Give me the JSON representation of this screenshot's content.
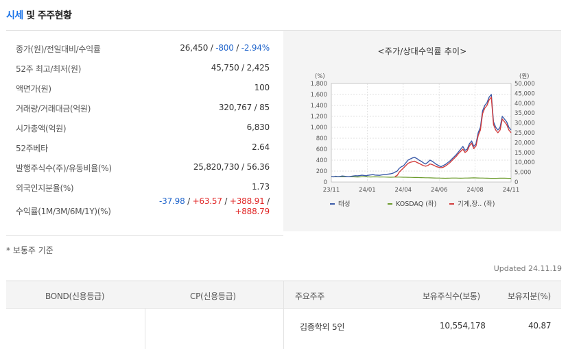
{
  "title": {
    "part1": "시세",
    "part2": "및 주주현황"
  },
  "info_rows": [
    {
      "label": "종가(원)/전일대비/수익률",
      "values": [
        {
          "text": "26,450",
          "tone": "normal"
        },
        {
          "text": " / ",
          "tone": "normal"
        },
        {
          "text": "-800",
          "tone": "neg"
        },
        {
          "text": " / ",
          "tone": "normal"
        },
        {
          "text": "-2.94%",
          "tone": "neg"
        }
      ]
    },
    {
      "label": "52주 최고/최저(원)",
      "value": "45,750 / 2,425"
    },
    {
      "label": "액면가(원)",
      "value": "100"
    },
    {
      "label": "거래량/거래대금(억원)",
      "value": "320,767 / 85"
    },
    {
      "label": "시가총액(억원)",
      "value": "6,830"
    },
    {
      "label": "52주베타",
      "value": "2.64"
    },
    {
      "label": "발행주식수(주)/유동비율(%)",
      "value": "25,820,730 / 56.36"
    },
    {
      "label": "외국인지분율(%)",
      "value": "1.73"
    },
    {
      "label": "수익률(1M/3M/6M/1Y)(%)",
      "line1": [
        {
          "text": "-37.98",
          "tone": "neg"
        },
        {
          "text": " / ",
          "tone": "normal"
        },
        {
          "text": "+63.57",
          "tone": "pos"
        },
        {
          "text": " / ",
          "tone": "normal"
        },
        {
          "text": "+388.91",
          "tone": "pos"
        },
        {
          "text": " /",
          "tone": "normal"
        }
      ],
      "line2": [
        {
          "text": "+888.79",
          "tone": "pos"
        }
      ]
    }
  ],
  "chart_data": {
    "type": "line",
    "title": "<주가/상대수익률 추이>",
    "left_axis_unit": "(%)",
    "right_axis_unit": "(원)",
    "left_ticks": [
      "1,800",
      "1,600",
      "1,400",
      "1,200",
      "1,000",
      "800",
      "600",
      "400",
      "200",
      "0"
    ],
    "right_ticks": [
      "50,000",
      "45,000",
      "40,000",
      "35,000",
      "30,000",
      "25,000",
      "20,000",
      "15,000",
      "10,000",
      "5,000",
      "0"
    ],
    "x_ticks": [
      "23/11",
      "24/01",
      "24/04",
      "24/06",
      "24/08",
      "24/11"
    ],
    "ylim_left": [
      0,
      1800
    ],
    "ylim_right": [
      0,
      50000
    ],
    "series": [
      {
        "name": "태성",
        "color": "#3a5aa8",
        "axis": "left",
        "values": [
          100,
          95,
          105,
          98,
          102,
          110,
          105,
          100,
          98,
          104,
          110,
          115,
          112,
          118,
          125,
          120,
          115,
          125,
          130,
          135,
          128,
          125,
          122,
          130,
          135,
          140,
          145,
          150,
          160,
          180,
          200,
          250,
          280,
          300,
          350,
          400,
          420,
          440,
          450,
          430,
          400,
          380,
          350,
          330,
          360,
          400,
          380,
          350,
          320,
          300,
          280,
          300,
          320,
          350,
          380,
          420,
          460,
          500,
          550,
          600,
          650,
          580,
          600,
          700,
          750,
          650,
          700,
          900,
          1000,
          1300,
          1400,
          1450,
          1550,
          1600,
          1100,
          1000,
          950,
          1000,
          1200,
          1150,
          1100,
          1000,
          950
        ]
      },
      {
        "name": "KOSDAQ (좌)",
        "color": "#6a9a2a",
        "axis": "left",
        "values": [
          100,
          98,
          97,
          96,
          97,
          95,
          96,
          98,
          97,
          96,
          95,
          94,
          93,
          94,
          95,
          96,
          95,
          94,
          93,
          94,
          95,
          94,
          93,
          92,
          91,
          90,
          89,
          88,
          89,
          90,
          91,
          90,
          89,
          88,
          87,
          86,
          85,
          84,
          83,
          82,
          81,
          80,
          79,
          78,
          77,
          76,
          75,
          74,
          73,
          72,
          71,
          70,
          69,
          70,
          71,
          72,
          73,
          72,
          71,
          70,
          71,
          72,
          73,
          74,
          75,
          76,
          75,
          74,
          73,
          72,
          71,
          70,
          69,
          68,
          67,
          68,
          69,
          70,
          71,
          70,
          69,
          68,
          67
        ]
      },
      {
        "name": "기계,장.. (좌)",
        "color": "#d23c3c",
        "axis": "left",
        "values": [
          0,
          0,
          0,
          0,
          0,
          0,
          0,
          0,
          0,
          0,
          0,
          0,
          0,
          0,
          0,
          0,
          0,
          0,
          0,
          0,
          0,
          0,
          0,
          0,
          0,
          0,
          0,
          0,
          0,
          100,
          120,
          180,
          220,
          260,
          300,
          340,
          360,
          370,
          380,
          360,
          340,
          320,
          300,
          290,
          300,
          330,
          320,
          300,
          280,
          270,
          260,
          270,
          290,
          320,
          350,
          390,
          430,
          470,
          520,
          560,
          600,
          540,
          570,
          660,
          710,
          610,
          660,
          850,
          950,
          1250,
          1350,
          1400,
          1500,
          1550,
          1050,
          950,
          900,
          950,
          1150,
          1100,
          1050,
          950,
          900
        ]
      }
    ],
    "grid": true,
    "legend_position": "bottom"
  },
  "footnote": "* 보통주 기준",
  "updated": "Updated 24.11.19",
  "bond_table": {
    "headers": [
      "BOND(신용등급)",
      "CP(신용등급)",
      "주요주주",
      "보유주식수(보통)",
      "보유지분(%)"
    ],
    "row": {
      "bond": "",
      "cp": "",
      "holder": "김종학외 5인",
      "shares": "10,554,178",
      "pct": "40.87"
    }
  }
}
